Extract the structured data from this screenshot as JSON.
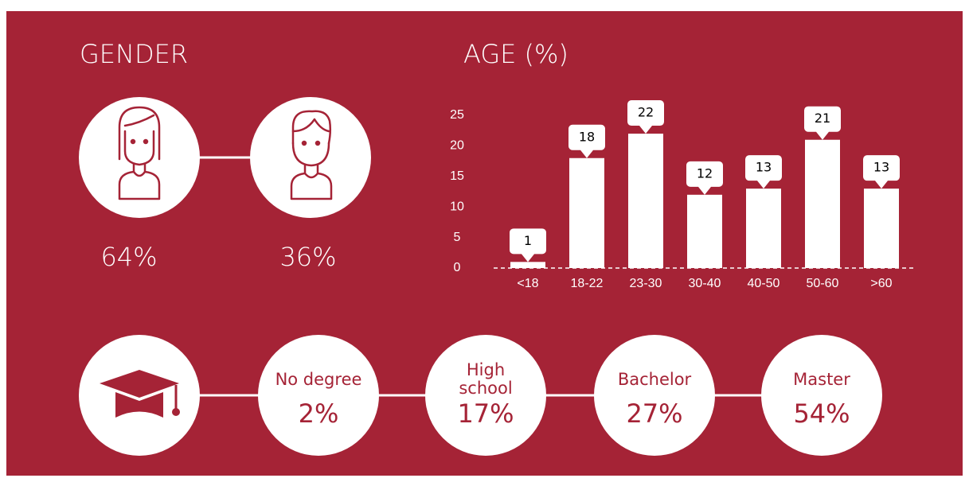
{
  "gender": {
    "title": "GENDER",
    "female": "64%",
    "male": "36%"
  },
  "chart_data": {
    "type": "bar",
    "title": "AGE (%)",
    "categories": [
      "<18",
      "18-22",
      "23-30",
      "30-40",
      "40-50",
      "50-60",
      ">60"
    ],
    "values": [
      1,
      18,
      22,
      12,
      13,
      21,
      13
    ],
    "color": "#ffffff",
    "ylim": [
      0,
      25
    ],
    "yticks": [
      0,
      5,
      10,
      15,
      20,
      25
    ]
  },
  "education": {
    "items": [
      {
        "label": "No degree",
        "value": "2%"
      },
      {
        "label": "High school",
        "value": "17%"
      },
      {
        "label": "Bachelor",
        "value": "27%"
      },
      {
        "label": "Master",
        "value": "54%"
      }
    ]
  }
}
